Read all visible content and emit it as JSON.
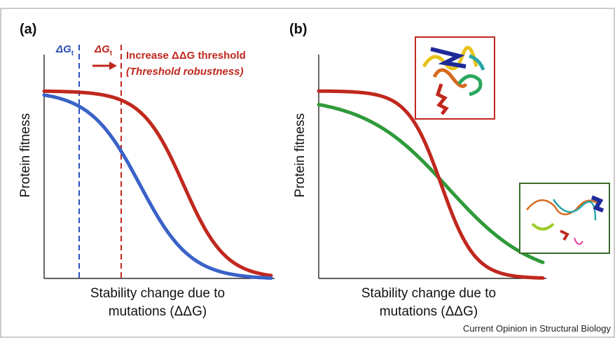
{
  "panels": [
    {
      "label": "(a)",
      "y_axis": "Protein fitness",
      "x_axis": [
        "Stability change due to",
        "mutations (ΔΔG)"
      ],
      "thresholds": [
        {
          "symbol": "ΔG",
          "subscript": "t"
        },
        {
          "symbol": "ΔG",
          "subscript": "t"
        }
      ],
      "annotation": [
        "Increase ΔΔG threshold",
        "(Threshold robustness)"
      ]
    },
    {
      "label": "(b)",
      "y_axis": "Protein fitness",
      "x_axis": [
        "Stability change due to",
        "mutations (ΔΔG)"
      ]
    }
  ],
  "footer": "Current Opinion in Structural Biology"
}
